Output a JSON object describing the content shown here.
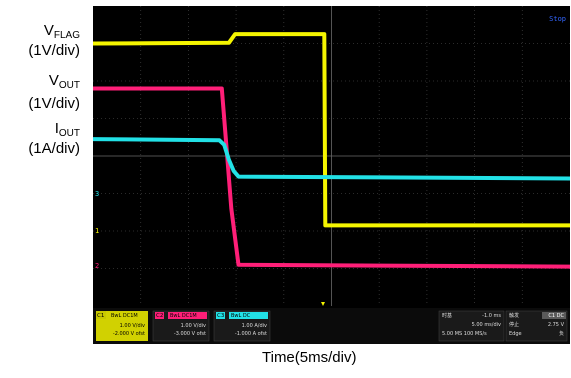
{
  "chart_data": {
    "type": "line",
    "title": "",
    "xlabel": "Time(5ms/div)",
    "ylabel": "",
    "grid": true,
    "divisions": {
      "x": 10,
      "y": 8
    },
    "xlim": [
      0,
      10
    ],
    "ylim": [
      -4,
      4
    ],
    "series": [
      {
        "name": "VFLAG",
        "color": "#f5f500",
        "x": [
          0,
          2.85,
          2.98,
          4.85,
          4.87,
          10
        ],
        "y": [
          3.0,
          3.02,
          3.25,
          3.25,
          -1.85,
          -1.85
        ]
      },
      {
        "name": "VOUT",
        "color": "#ff1f78",
        "x": [
          0,
          2.7,
          2.8,
          2.9,
          3.05,
          10
        ],
        "y": [
          1.8,
          1.8,
          0.2,
          -1.4,
          -2.9,
          -2.95
        ]
      },
      {
        "name": "IOUT",
        "color": "#22e1e6",
        "x": [
          0,
          2.65,
          2.75,
          2.85,
          2.95,
          3.05,
          10
        ],
        "y": [
          0.45,
          0.42,
          0.3,
          -0.1,
          -0.4,
          -0.55,
          -0.6
        ]
      }
    ]
  },
  "labels": {
    "vflag_main": "V",
    "vflag_sub": "FLAG",
    "vflag_scale": "(1V/div)",
    "vout_main": "V",
    "vout_sub": "OUT",
    "vout_scale": "(1V/div)",
    "iout_main": "I",
    "iout_sub": "OUT",
    "iout_scale": "(1A/div)"
  },
  "scope": {
    "top_right": "Stop",
    "channel_markers": {
      "ch1": "1",
      "ch2": "2",
      "ch3": "3"
    },
    "ch1": {
      "tag": "C1",
      "coupling": "BwL DC1M",
      "scale": "1.00 V/div",
      "offset": "-2.000 V ofst"
    },
    "ch2": {
      "tag": "C2",
      "coupling": "BwL DC1M",
      "scale": "1.00 V/div",
      "offset": "-3.000 V ofst"
    },
    "ch3": {
      "tag": "C3",
      "coupling": "BwL DC",
      "scale": "1.00 A/div",
      "offset": "-1.000 A ofst"
    },
    "timebase": {
      "label": "时基",
      "delay": "-1.0 ms",
      "scale": "5.00 ms/div",
      "rate": "5.00 MS   100 MS/s"
    },
    "trigger": {
      "label": "触发",
      "mode": "停止",
      "type": "Edge",
      "channel": "C1 DC",
      "level": "2.75 V",
      "slope": "负"
    }
  }
}
